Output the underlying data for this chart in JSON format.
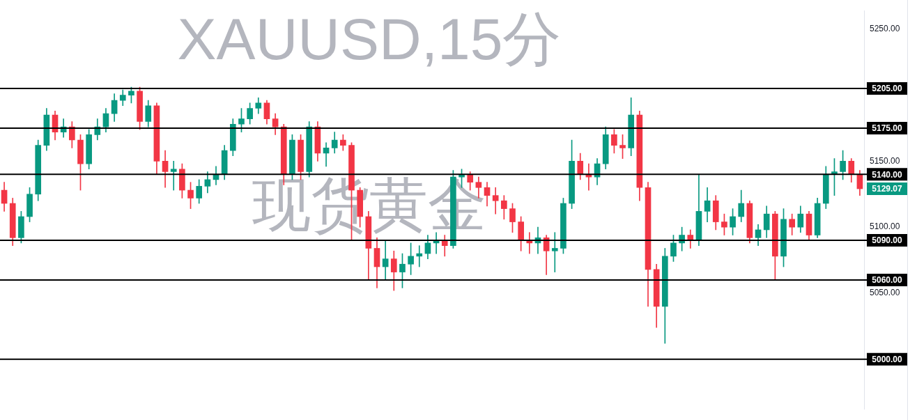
{
  "chart_data": {
    "type": "candlestick",
    "title": "XAUUSD,15分",
    "subtitle": "现货黄金",
    "categories": [
      null,
      null,
      null,
      null,
      null,
      null,
      null,
      null,
      null,
      null,
      null,
      null,
      null,
      null,
      null,
      null,
      null,
      null,
      null,
      null,
      null,
      null,
      null,
      null,
      null,
      null,
      null,
      null,
      null,
      null,
      null,
      null,
      null,
      null,
      null,
      null,
      null,
      null,
      null,
      null,
      null,
      null,
      null,
      null,
      null,
      null,
      null,
      null,
      null,
      null,
      null,
      null,
      null,
      null,
      null,
      null,
      null,
      null,
      null,
      null,
      null,
      null,
      null,
      null,
      null,
      null,
      null,
      null,
      null,
      null,
      null,
      null,
      null,
      null,
      null,
      null,
      null,
      null,
      null,
      null,
      null,
      null,
      null,
      null,
      null,
      null,
      null,
      null,
      null,
      null,
      null,
      null,
      null,
      null,
      null,
      null,
      null,
      null,
      null,
      null,
      null,
      null
    ],
    "ohlc": [
      [
        5128,
        5134,
        5112,
        5118
      ],
      [
        5118,
        5122,
        5086,
        5092
      ],
      [
        5092,
        5112,
        5088,
        5108
      ],
      [
        5108,
        5130,
        5104,
        5125
      ],
      [
        5125,
        5166,
        5120,
        5162
      ],
      [
        5162,
        5190,
        5158,
        5185
      ],
      [
        5185,
        5188,
        5166,
        5172
      ],
      [
        5172,
        5182,
        5168,
        5176
      ],
      [
        5176,
        5180,
        5160,
        5166
      ],
      [
        5166,
        5170,
        5128,
        5148
      ],
      [
        5148,
        5174,
        5144,
        5170
      ],
      [
        5170,
        5182,
        5166,
        5176
      ],
      [
        5176,
        5190,
        5172,
        5186
      ],
      [
        5186,
        5201,
        5180,
        5196
      ],
      [
        5196,
        5204,
        5192,
        5200
      ],
      [
        5200,
        5206,
        5194,
        5203
      ],
      [
        5203,
        5206,
        5174,
        5180
      ],
      [
        5180,
        5196,
        5176,
        5192
      ],
      [
        5192,
        5194,
        5140,
        5150
      ],
      [
        5150,
        5158,
        5130,
        5142
      ],
      [
        5142,
        5150,
        5128,
        5144
      ],
      [
        5144,
        5148,
        5122,
        5128
      ],
      [
        5128,
        5134,
        5114,
        5122
      ],
      [
        5122,
        5136,
        5118,
        5131
      ],
      [
        5131,
        5142,
        5126,
        5136
      ],
      [
        5136,
        5146,
        5132,
        5140
      ],
      [
        5140,
        5162,
        5136,
        5158
      ],
      [
        5158,
        5182,
        5154,
        5178
      ],
      [
        5178,
        5190,
        5172,
        5182
      ],
      [
        5182,
        5194,
        5178,
        5190
      ],
      [
        5190,
        5198,
        5186,
        5194
      ],
      [
        5194,
        5196,
        5178,
        5182
      ],
      [
        5182,
        5186,
        5170,
        5176
      ],
      [
        5176,
        5178,
        5132,
        5140
      ],
      [
        5140,
        5170,
        5136,
        5166
      ],
      [
        5166,
        5170,
        5136,
        5142
      ],
      [
        5142,
        5180,
        5138,
        5176
      ],
      [
        5176,
        5180,
        5150,
        5156
      ],
      [
        5156,
        5164,
        5146,
        5160
      ],
      [
        5160,
        5172,
        5156,
        5166
      ],
      [
        5166,
        5170,
        5158,
        5162
      ],
      [
        5162,
        5164,
        5090,
        5128
      ],
      [
        5128,
        5130,
        5100,
        5108
      ],
      [
        5108,
        5112,
        5060,
        5084
      ],
      [
        5084,
        5092,
        5054,
        5070
      ],
      [
        5070,
        5090,
        5060,
        5076
      ],
      [
        5076,
        5082,
        5052,
        5066
      ],
      [
        5066,
        5080,
        5054,
        5072
      ],
      [
        5072,
        5088,
        5064,
        5078
      ],
      [
        5078,
        5086,
        5070,
        5080
      ],
      [
        5080,
        5094,
        5076,
        5088
      ],
      [
        5088,
        5096,
        5080,
        5090
      ],
      [
        5090,
        5094,
        5078,
        5086
      ],
      [
        5086,
        5143,
        5084,
        5138
      ],
      [
        5138,
        5144,
        5130,
        5140
      ],
      [
        5140,
        5142,
        5128,
        5134
      ],
      [
        5134,
        5138,
        5122,
        5130
      ],
      [
        5130,
        5134,
        5116,
        5124
      ],
      [
        5124,
        5130,
        5110,
        5120
      ],
      [
        5120,
        5124,
        5106,
        5114
      ],
      [
        5114,
        5118,
        5096,
        5104
      ],
      [
        5104,
        5108,
        5082,
        5090
      ],
      [
        5090,
        5096,
        5080,
        5088
      ],
      [
        5088,
        5100,
        5080,
        5092
      ],
      [
        5092,
        5094,
        5064,
        5082
      ],
      [
        5082,
        5096,
        5066,
        5084
      ],
      [
        5084,
        5122,
        5080,
        5118
      ],
      [
        5118,
        5166,
        5114,
        5150
      ],
      [
        5150,
        5156,
        5136,
        5140
      ],
      [
        5140,
        5148,
        5128,
        5138
      ],
      [
        5138,
        5152,
        5132,
        5148
      ],
      [
        5148,
        5176,
        5144,
        5170
      ],
      [
        5170,
        5174,
        5156,
        5162
      ],
      [
        5162,
        5170,
        5152,
        5160
      ],
      [
        5160,
        5198,
        5154,
        5185
      ],
      [
        5185,
        5188,
        5120,
        5130
      ],
      [
        5130,
        5134,
        5040,
        5068
      ],
      [
        5068,
        5072,
        5024,
        5040
      ],
      [
        5040,
        5084,
        5012,
        5078
      ],
      [
        5078,
        5094,
        5074,
        5088
      ],
      [
        5088,
        5100,
        5082,
        5094
      ],
      [
        5094,
        5098,
        5084,
        5090
      ],
      [
        5090,
        5140,
        5086,
        5112
      ],
      [
        5112,
        5130,
        5104,
        5120
      ],
      [
        5120,
        5124,
        5098,
        5104
      ],
      [
        5104,
        5110,
        5094,
        5100
      ],
      [
        5100,
        5114,
        5094,
        5108
      ],
      [
        5108,
        5128,
        5104,
        5118
      ],
      [
        5118,
        5120,
        5088,
        5092
      ],
      [
        5092,
        5102,
        5086,
        5098
      ],
      [
        5098,
        5116,
        5092,
        5110
      ],
      [
        5110,
        5112,
        5060,
        5078
      ],
      [
        5078,
        5114,
        5070,
        5106
      ],
      [
        5106,
        5110,
        5094,
        5100
      ],
      [
        5100,
        5116,
        5096,
        5110
      ],
      [
        5110,
        5112,
        5090,
        5094
      ],
      [
        5094,
        5122,
        5092,
        5118
      ],
      [
        5118,
        5146,
        5114,
        5140
      ],
      [
        5140,
        5152,
        5124,
        5142
      ],
      [
        5142,
        5158,
        5136,
        5150
      ],
      [
        5150,
        5152,
        5134,
        5140
      ],
      [
        5140,
        5143,
        5124,
        5129.07
      ]
    ],
    "colors": [
      "#f23645",
      "#f23645",
      "#089981",
      "#089981",
      "#089981",
      "#089981",
      "#f23645",
      "#089981",
      "#f23645",
      "#f23645",
      "#089981",
      "#089981",
      "#089981",
      "#089981",
      "#089981",
      "#089981",
      "#f23645",
      "#089981",
      "#f23645",
      "#f23645",
      "#089981",
      "#f23645",
      "#f23645",
      "#089981",
      "#089981",
      "#089981",
      "#089981",
      "#089981",
      "#089981",
      "#089981",
      "#089981",
      "#f23645",
      "#f23645",
      "#f23645",
      "#089981",
      "#f23645",
      "#089981",
      "#f23645",
      "#089981",
      "#089981",
      "#f23645",
      "#f23645",
      "#f23645",
      "#f23645",
      "#f23645",
      "#089981",
      "#f23645",
      "#089981",
      "#089981",
      "#089981",
      "#089981",
      "#089981",
      "#f23645",
      "#089981",
      "#089981",
      "#f23645",
      "#f23645",
      "#f23645",
      "#f23645",
      "#f23645",
      "#f23645",
      "#f23645",
      "#f23645",
      "#089981",
      "#f23645",
      "#089981",
      "#089981",
      "#089981",
      "#f23645",
      "#f23645",
      "#089981",
      "#089981",
      "#f23645",
      "#f23645",
      "#089981",
      "#f23645",
      "#f23645",
      "#f23645",
      "#089981",
      "#089981",
      "#089981",
      "#f23645",
      "#089981",
      "#089981",
      "#f23645",
      "#f23645",
      "#089981",
      "#089981",
      "#f23645",
      "#089981",
      "#089981",
      "#f23645",
      "#089981",
      "#f23645",
      "#089981",
      "#f23645",
      "#089981",
      "#089981",
      "#089981",
      "#089981",
      "#f23645",
      "#f23645"
    ],
    "ylim": [
      4962,
      5264
    ],
    "yticks": [
      {
        "value": 5050,
        "label": "5050.00"
      },
      {
        "value": 5100,
        "label": "5100.00"
      },
      {
        "value": 5150,
        "label": "5150.00"
      },
      {
        "value": 5250,
        "label": "5250.00"
      }
    ],
    "tick_labels": "y",
    "ref_lines": [
      {
        "axis": "y",
        "value": 5205,
        "label": "5205.00",
        "color": "#000000"
      },
      {
        "axis": "y",
        "value": 5175,
        "label": "5175.00",
        "color": "#000000"
      },
      {
        "axis": "y",
        "value": 5140,
        "label": "5140.00",
        "color": "#000000"
      },
      {
        "axis": "y",
        "value": 5090,
        "label": "5090.00",
        "color": "#000000"
      },
      {
        "axis": "y",
        "value": 5060,
        "label": "5060.00",
        "color": "#000000"
      },
      {
        "axis": "y",
        "value": 5000,
        "label": "5000.00",
        "color": "#000000"
      }
    ],
    "annotations": [
      "5129.07"
    ]
  }
}
